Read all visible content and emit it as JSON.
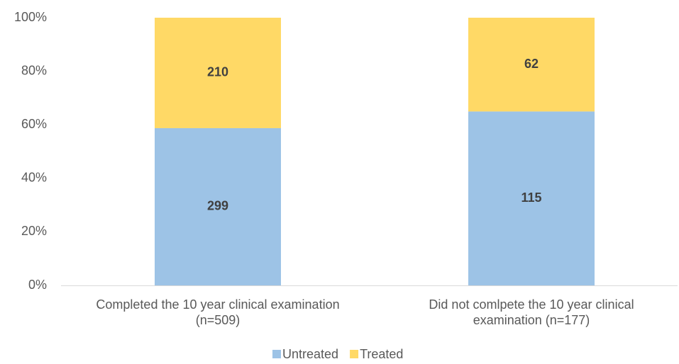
{
  "chart_data": {
    "type": "bar",
    "stacked": "percent",
    "categories": [
      "Completed the 10 year clinical examination\n(n=509)",
      "Did not comlpete the  10 year clinical\nexamination (n=177)"
    ],
    "series": [
      {
        "name": "Untreated",
        "color": "#9DC3E6",
        "values": [
          299,
          115
        ]
      },
      {
        "name": "Treated",
        "color": "#FFD966",
        "values": [
          210,
          62
        ]
      }
    ],
    "ylim": [
      0,
      100
    ],
    "yticks": [
      {
        "value": 0,
        "label": "0%"
      },
      {
        "value": 20,
        "label": "20%"
      },
      {
        "value": 40,
        "label": "40%"
      },
      {
        "value": 60,
        "label": "60%"
      },
      {
        "value": 80,
        "label": "80%"
      },
      {
        "value": 100,
        "label": "100%"
      }
    ],
    "grid": false,
    "legend": "bottom"
  }
}
